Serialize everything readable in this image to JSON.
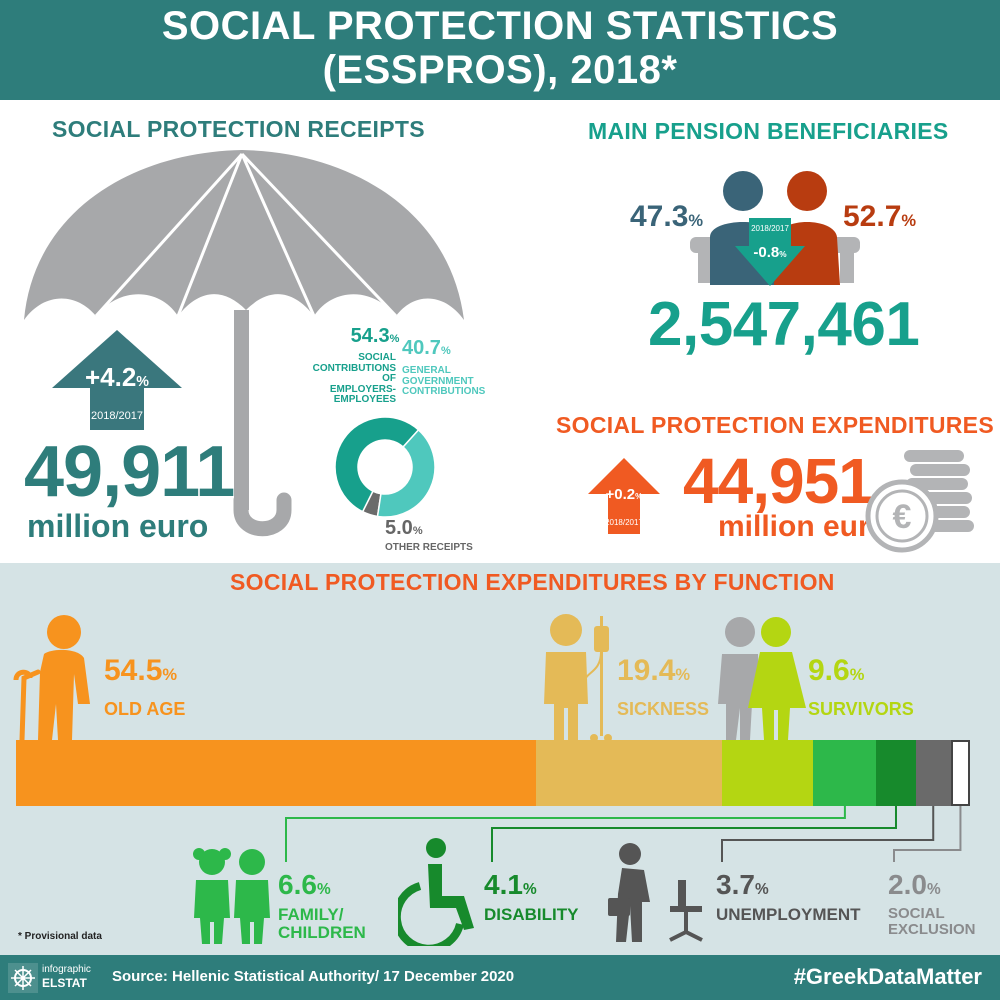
{
  "header": {
    "title_line1": "SOCIAL PROTECTION STATISTICS",
    "title_line2": "(ESSPROS), 2018*"
  },
  "receipts": {
    "title": "SOCIAL PROTECTION RECEIPTS",
    "change": "+4.2",
    "change_unit": "%",
    "change_period": "2018/2017",
    "value": "49,911",
    "unit": "million euro",
    "breakdown": [
      {
        "pct": "54.3",
        "unit": "%",
        "label_lines": [
          "SOCIAL",
          "CONTRIBUTIONS OF",
          "EMPLOYERS-",
          "EMPLOYEES"
        ],
        "color": "#17a08c"
      },
      {
        "pct": "40.7",
        "unit": "%",
        "label_lines": [
          "GENERAL",
          "GOVERNMENT",
          "CONTRIBUTIONS"
        ],
        "color": "#4fc8bd"
      },
      {
        "pct": "5.0",
        "unit": "%",
        "label_lines": [
          "OTHER RECEIPTS"
        ],
        "color": "#6b6b6b"
      }
    ]
  },
  "pensions": {
    "title": "MAIN PENSION BENEFICIARIES",
    "male_pct": "47.3",
    "female_pct": "52.7",
    "unit": "%",
    "change_period": "2018/2017",
    "change": "-0.8",
    "change_unit": "%",
    "total": "2,547,461",
    "colors": {
      "male": "#3a6478",
      "female": "#b83c10"
    }
  },
  "expenditures": {
    "title": "SOCIAL PROTECTION EXPENDITURES",
    "change": "+0.2",
    "change_unit": "%",
    "change_period": "2018/2017",
    "value": "44,951",
    "unit": "million euro"
  },
  "by_function": {
    "title": "SOCIAL PROTECTION EXPENDITURES BY FUNCTION",
    "items": [
      {
        "name": "OLD AGE",
        "pct": "54.5",
        "value": 54.5,
        "color": "#f7931e"
      },
      {
        "name": "SICKNESS",
        "pct": "19.4",
        "value": 19.4,
        "color": "#e4ba57"
      },
      {
        "name": "SURVIVORS",
        "pct": "9.6",
        "value": 9.6,
        "color": "#b4d612"
      },
      {
        "name": "FAMILY/ CHILDREN",
        "line1": "FAMILY/",
        "line2": "CHILDREN",
        "pct": "6.6",
        "value": 6.6,
        "color": "#2db84a"
      },
      {
        "name": "DISABILITY",
        "pct": "4.1",
        "value": 4.1,
        "color": "#178a2c"
      },
      {
        "name": "UNEMPLOYMENT",
        "pct": "3.7",
        "value": 3.7,
        "color": "#6a6a6a"
      },
      {
        "name": "SOCIAL EXCLUSION",
        "line1": "SOCIAL",
        "line2": "EXCLUSION",
        "pct": "2.0",
        "value": 2.0,
        "color": "#ffffff"
      }
    ],
    "unit": "%",
    "note": "* Provisional data"
  },
  "footer": {
    "logo_top": "infographic",
    "logo_bottom": "ELSTAT",
    "source": "Source: Hellenic Statistical Authority/ 17 December 2020",
    "hashtag": "#GreekDataMatter"
  }
}
